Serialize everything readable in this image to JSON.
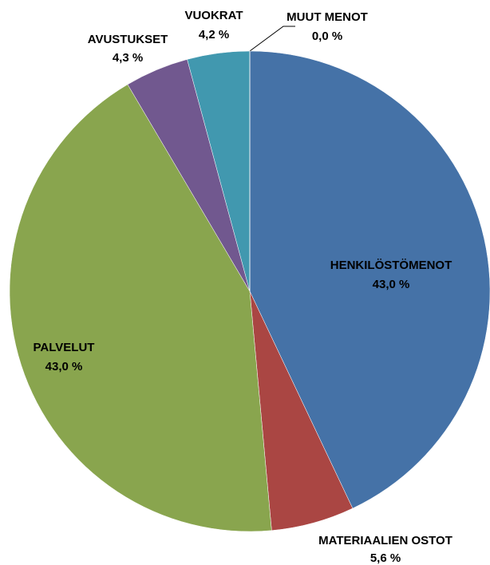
{
  "chart_data": {
    "type": "pie",
    "categories": [
      "HENKILÖSTÖMENOT",
      "MATERIAALIEN OSTOT",
      "PALVELUT",
      "AVUSTUKSET",
      "VUOKRAT",
      "MUUT MENOT"
    ],
    "values": [
      43.0,
      5.6,
      43.0,
      4.3,
      4.2,
      0.0
    ],
    "value_labels": [
      "43,0 %",
      "5,6 %",
      "43,0 %",
      "4,3 %",
      "4,2 %",
      "0,0 %"
    ],
    "colors": [
      "#4572A7",
      "#AA4643",
      "#89A54E",
      "#71588F",
      "#4198AF",
      "#DB843D"
    ]
  }
}
